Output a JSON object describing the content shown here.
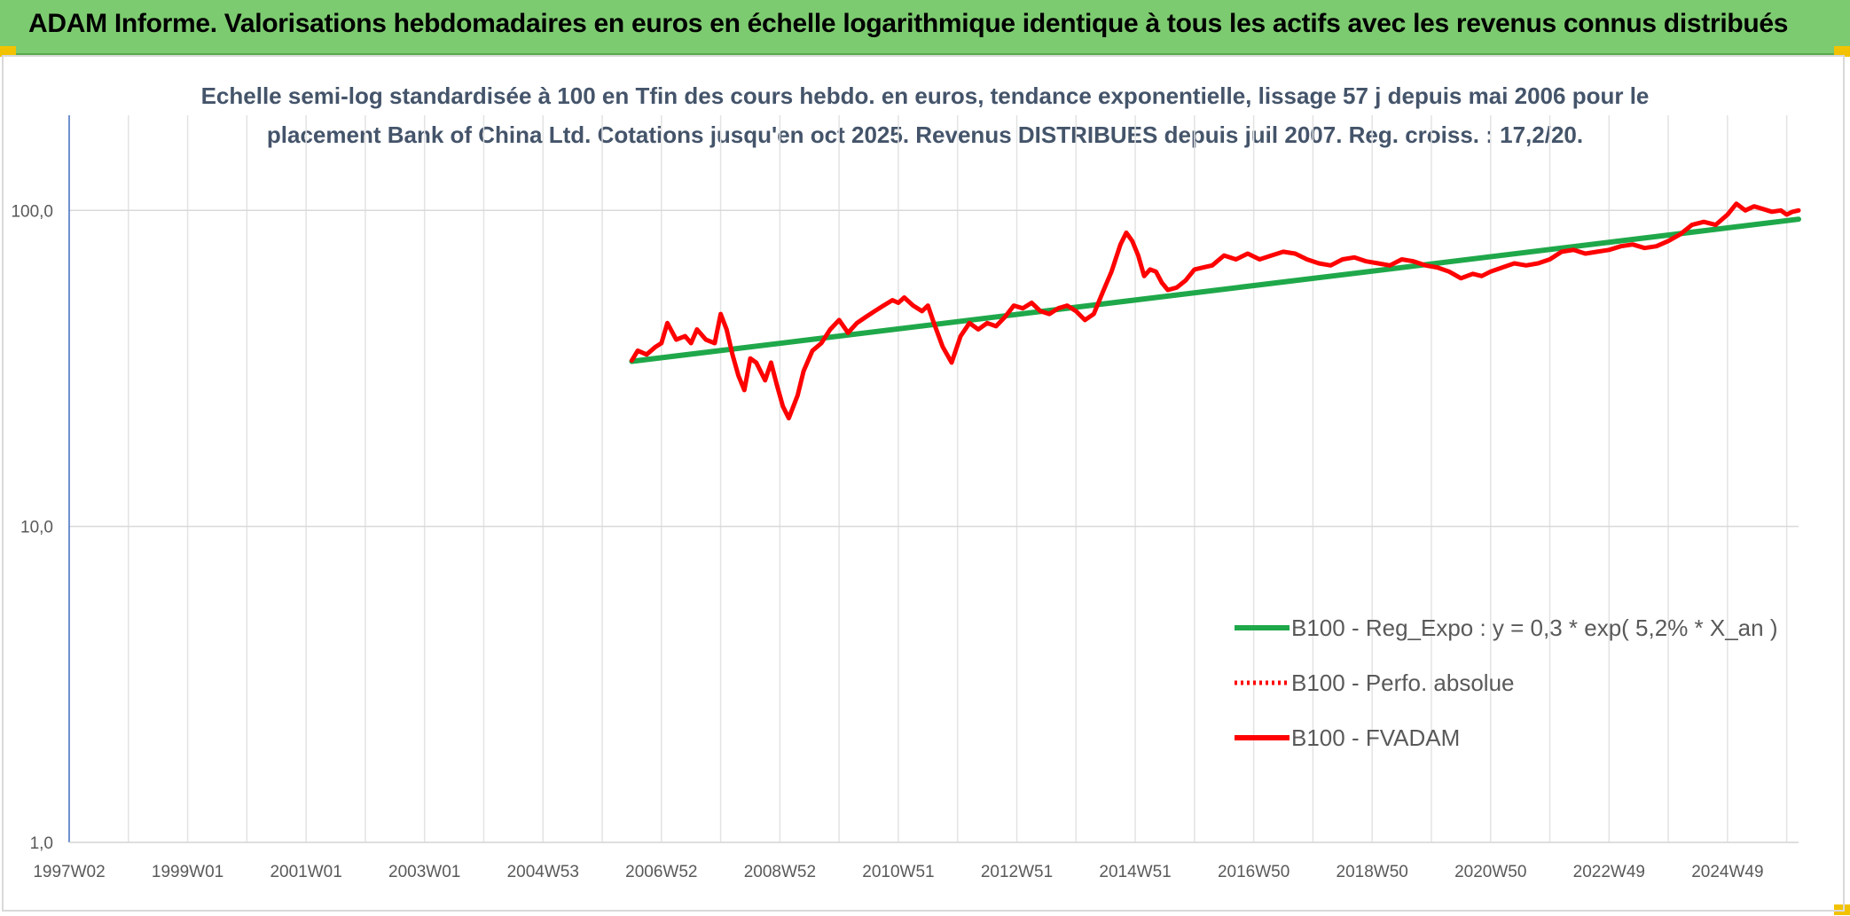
{
  "header": {
    "title": "ADAM Informe. Valorisations hebdomadaires en euros en échelle logarithmique identique à tous les actifs avec les revenus connus distribués"
  },
  "chart_data": {
    "type": "line",
    "title": "Echelle semi-log standardisée à 100 en Tfin des cours hebdo. en euros, tendance exponentielle, lissage 57 j depuis mai 2006 pour le",
    "subtitle": "placement Bank of China Ltd. Cotations jusqu'en oct 2025. Revenus DISTRIBUES depuis juil 2007. Reg. croiss. : 17,2/20.",
    "xlabel": "",
    "ylabel": "",
    "y_scale": "log",
    "ylim": [
      1,
      200
    ],
    "xlim": [
      1997.0,
      2026.2
    ],
    "y_ticks": [
      {
        "value": 1,
        "label": "1,0"
      },
      {
        "value": 10,
        "label": "10,0"
      },
      {
        "value": 100,
        "label": "100,0"
      }
    ],
    "x_ticks": [
      {
        "value": 1997.0,
        "label": "1997W02"
      },
      {
        "value": 1999.0,
        "label": "1999W01"
      },
      {
        "value": 2001.0,
        "label": "2001W01"
      },
      {
        "value": 2003.0,
        "label": "2003W01"
      },
      {
        "value": 2005.0,
        "label": "2004W53"
      },
      {
        "value": 2007.0,
        "label": "2006W52"
      },
      {
        "value": 2009.0,
        "label": "2008W52"
      },
      {
        "value": 2011.0,
        "label": "2010W51"
      },
      {
        "value": 2013.0,
        "label": "2012W51"
      },
      {
        "value": 2015.0,
        "label": "2014W51"
      },
      {
        "value": 2017.0,
        "label": "2016W50"
      },
      {
        "value": 2019.0,
        "label": "2018W50"
      },
      {
        "value": 2021.0,
        "label": "2020W50"
      },
      {
        "value": 2023.0,
        "label": "2022W49"
      },
      {
        "value": 2025.0,
        "label": "2024W49"
      }
    ],
    "grid": true,
    "legend_position": "bottom-right",
    "series": [
      {
        "name": "B100 - Reg_Expo : y = 0,3 * exp( 5,2% *  X_an )",
        "color": "#1fa84a",
        "style": "solid",
        "x": [
          2006.5,
          2026.2
        ],
        "values": [
          33.3,
          93.8
        ]
      },
      {
        "name": "B100 - Perfo. absolue",
        "color": "#ff0000",
        "style": "dotted",
        "x": [],
        "values": []
      },
      {
        "name": "B100 - FVADAM",
        "color": "#ff0000",
        "style": "solid",
        "x": [
          2006.5,
          2006.6,
          2006.75,
          2006.9,
          2007.0,
          2007.1,
          2007.25,
          2007.4,
          2007.5,
          2007.6,
          2007.75,
          2007.9,
          2008.0,
          2008.1,
          2008.2,
          2008.3,
          2008.4,
          2008.5,
          2008.6,
          2008.75,
          2008.85,
          2008.95,
          2009.05,
          2009.15,
          2009.3,
          2009.4,
          2009.55,
          2009.7,
          2009.85,
          2010.0,
          2010.15,
          2010.3,
          2010.45,
          2010.6,
          2010.75,
          2010.9,
          2011.0,
          2011.1,
          2011.25,
          2011.4,
          2011.5,
          2011.6,
          2011.75,
          2011.9,
          2012.05,
          2012.2,
          2012.35,
          2012.5,
          2012.65,
          2012.8,
          2012.95,
          2013.1,
          2013.25,
          2013.4,
          2013.55,
          2013.7,
          2013.85,
          2014.0,
          2014.15,
          2014.3,
          2014.45,
          2014.6,
          2014.75,
          2014.85,
          2014.95,
          2015.05,
          2015.15,
          2015.25,
          2015.35,
          2015.45,
          2015.55,
          2015.7,
          2015.85,
          2016.0,
          2016.15,
          2016.3,
          2016.5,
          2016.7,
          2016.9,
          2017.1,
          2017.3,
          2017.5,
          2017.7,
          2017.9,
          2018.1,
          2018.3,
          2018.5,
          2018.7,
          2018.9,
          2019.1,
          2019.3,
          2019.5,
          2019.7,
          2019.9,
          2020.1,
          2020.3,
          2020.5,
          2020.7,
          2020.85,
          2021.0,
          2021.2,
          2021.4,
          2021.6,
          2021.8,
          2022.0,
          2022.2,
          2022.4,
          2022.6,
          2022.8,
          2023.0,
          2023.2,
          2023.4,
          2023.6,
          2023.8,
          2024.0,
          2024.2,
          2024.4,
          2024.6,
          2024.8,
          2025.0,
          2025.15,
          2025.3,
          2025.45,
          2025.6,
          2025.75,
          2025.9,
          2026.0,
          2026.1,
          2026.2
        ],
        "values": [
          33.5,
          36,
          35,
          37,
          38,
          44,
          39,
          40,
          38,
          42,
          39,
          38,
          47,
          42,
          35,
          30,
          27,
          34,
          33,
          29,
          33,
          28,
          24,
          22,
          26,
          31,
          36,
          38,
          42,
          45,
          41,
          44,
          46,
          48,
          50,
          52,
          51,
          53,
          50,
          48,
          50,
          44,
          37,
          33,
          40,
          44,
          42,
          44,
          43,
          46,
          50,
          49,
          51,
          48,
          47,
          49,
          50,
          48,
          45,
          47,
          55,
          64,
          78,
          85,
          80,
          72,
          62,
          65,
          64,
          59,
          56,
          57,
          60,
          65,
          66,
          67,
          72,
          70,
          73,
          70,
          72,
          74,
          73,
          70,
          68,
          67,
          70,
          71,
          69,
          68,
          67,
          70,
          69,
          67,
          66,
          64,
          61,
          63,
          62,
          64,
          66,
          68,
          67,
          68,
          70,
          74,
          75,
          73,
          74,
          75,
          77,
          78,
          76,
          77,
          80,
          84,
          90,
          92,
          90,
          97,
          105,
          100,
          103,
          101,
          99,
          100,
          97,
          99,
          100
        ]
      }
    ]
  }
}
